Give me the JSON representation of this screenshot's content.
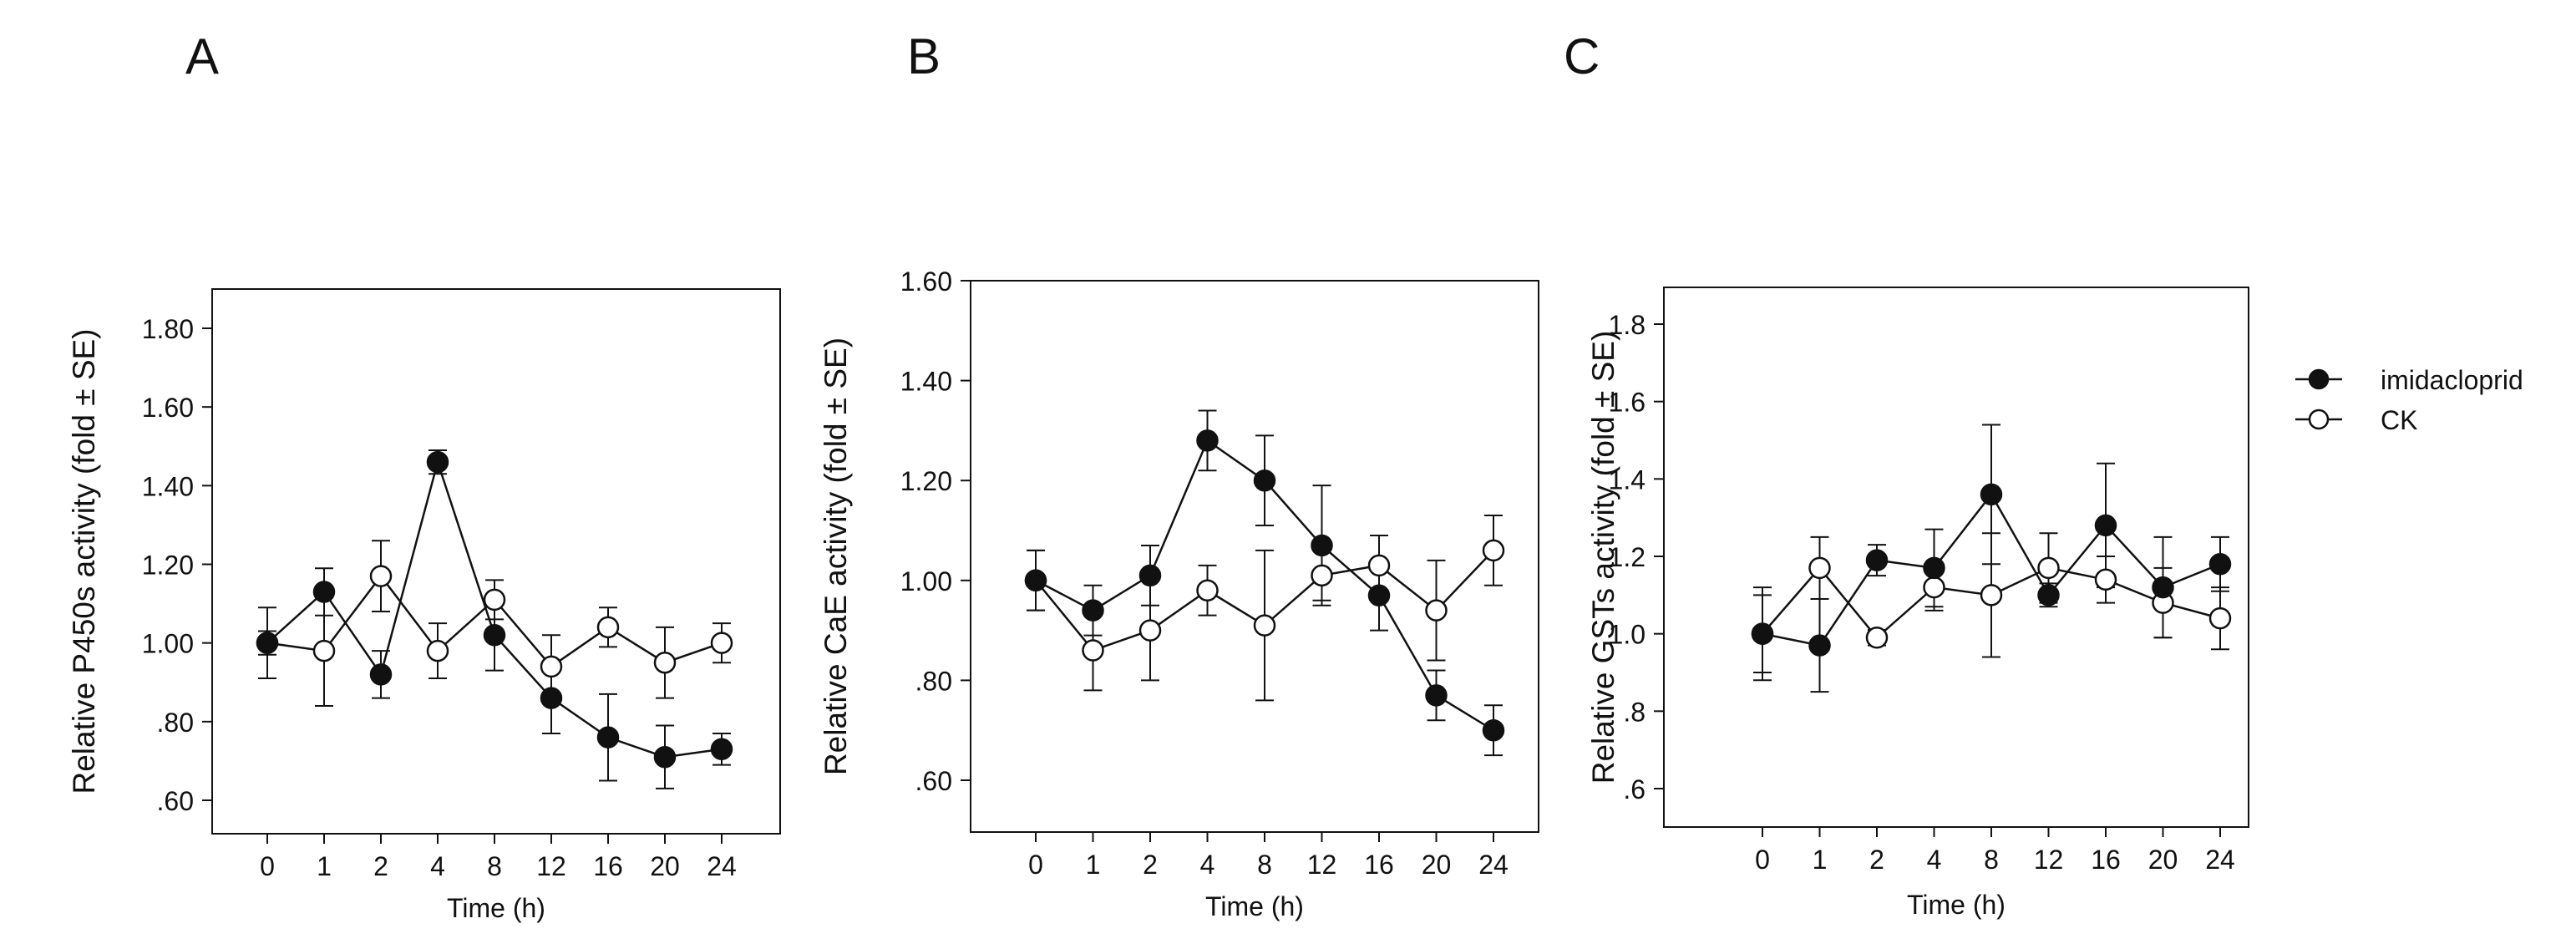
{
  "figure": {
    "x_ticks": [
      "0",
      "1",
      "2",
      "4",
      "8",
      "12",
      "16",
      "20",
      "24"
    ],
    "legend": {
      "placement": "right",
      "items": [
        {
          "label": "imidacloprid",
          "marker": "filled-circle"
        },
        {
          "label": "CK",
          "marker": "open-circle"
        }
      ]
    }
  },
  "chart_data": [
    {
      "type": "line",
      "panel_label": "A",
      "xlabel": "Time (h)",
      "ylabel": "Relative P450s activity (fold  ± SE)",
      "ylim": [
        0.5,
        1.9
      ],
      "yticks": [
        0.6,
        0.8,
        1.0,
        1.2,
        1.4,
        1.6,
        1.8
      ],
      "ytick_labels": [
        ".60",
        ".80",
        "1.00",
        "1.20",
        "1.40",
        "1.60",
        "1.80"
      ],
      "categories": [
        "0",
        "1",
        "2",
        "4",
        "8",
        "12",
        "16",
        "20",
        "24"
      ],
      "series": [
        {
          "name": "imidacloprid",
          "marker": "filled",
          "values": [
            1.0,
            1.13,
            0.92,
            1.46,
            1.02,
            0.86,
            0.76,
            0.71,
            0.73
          ],
          "errors": [
            0.03,
            0.06,
            0.06,
            0.03,
            0.09,
            0.09,
            0.11,
            0.08,
            0.04
          ]
        },
        {
          "name": "CK",
          "marker": "open",
          "values": [
            1.0,
            0.98,
            1.17,
            0.98,
            1.11,
            0.94,
            1.04,
            0.95,
            1.0
          ],
          "errors": [
            0.09,
            0.14,
            0.09,
            0.07,
            0.05,
            0.08,
            0.05,
            0.09,
            0.05
          ]
        }
      ]
    },
    {
      "type": "line",
      "panel_label": "B",
      "xlabel": "Time (h)",
      "ylabel": "Relative CaE activity (fold  ± SE)",
      "ylim": [
        0.5,
        1.6
      ],
      "yticks": [
        0.6,
        0.8,
        1.0,
        1.2,
        1.4,
        1.6
      ],
      "ytick_labels": [
        ".60",
        ".80",
        "1.00",
        "1.20",
        "1.40",
        "1.60"
      ],
      "categories": [
        "0",
        "1",
        "2",
        "4",
        "8",
        "12",
        "16",
        "20",
        "24"
      ],
      "series": [
        {
          "name": "imidacloprid",
          "marker": "filled",
          "values": [
            1.0,
            0.94,
            1.01,
            1.28,
            1.2,
            1.07,
            0.97,
            0.77,
            0.7
          ],
          "errors": [
            0.06,
            0.05,
            0.06,
            0.06,
            0.09,
            0.12,
            0.07,
            0.05,
            0.05
          ]
        },
        {
          "name": "CK",
          "marker": "open",
          "values": [
            1.0,
            0.86,
            0.9,
            0.98,
            0.91,
            1.01,
            1.03,
            0.94,
            1.06
          ],
          "errors": [
            0.06,
            0.08,
            0.1,
            0.05,
            0.15,
            0.05,
            0.06,
            0.1,
            0.07
          ]
        }
      ]
    },
    {
      "type": "line",
      "panel_label": "C",
      "xlabel": "Time (h)",
      "ylabel": "Relative GSTs activity (fold  ± SE)",
      "ylim": [
        0.5,
        1.9
      ],
      "yticks": [
        0.6,
        0.8,
        1.0,
        1.2,
        1.4,
        1.6,
        1.8
      ],
      "ytick_labels": [
        ".6",
        ".8",
        "1.0",
        "1.2",
        "1.4",
        "1.6",
        "1.8"
      ],
      "categories": [
        "0",
        "1",
        "2",
        "4",
        "8",
        "12",
        "16",
        "20",
        "24"
      ],
      "series": [
        {
          "name": "imidacloprid",
          "marker": "filled",
          "values": [
            1.0,
            0.97,
            1.19,
            1.17,
            1.36,
            1.1,
            1.28,
            1.12,
            1.18
          ],
          "errors": [
            0.1,
            0.12,
            0.04,
            0.1,
            0.18,
            0.03,
            0.16,
            0.13,
            0.07
          ]
        },
        {
          "name": "CK",
          "marker": "open",
          "values": [
            1.0,
            1.17,
            0.99,
            1.12,
            1.1,
            1.17,
            1.14,
            1.08,
            1.04
          ],
          "errors": [
            0.12,
            0.08,
            0.02,
            0.06,
            0.16,
            0.09,
            0.06,
            0.09,
            0.08
          ]
        }
      ]
    }
  ]
}
